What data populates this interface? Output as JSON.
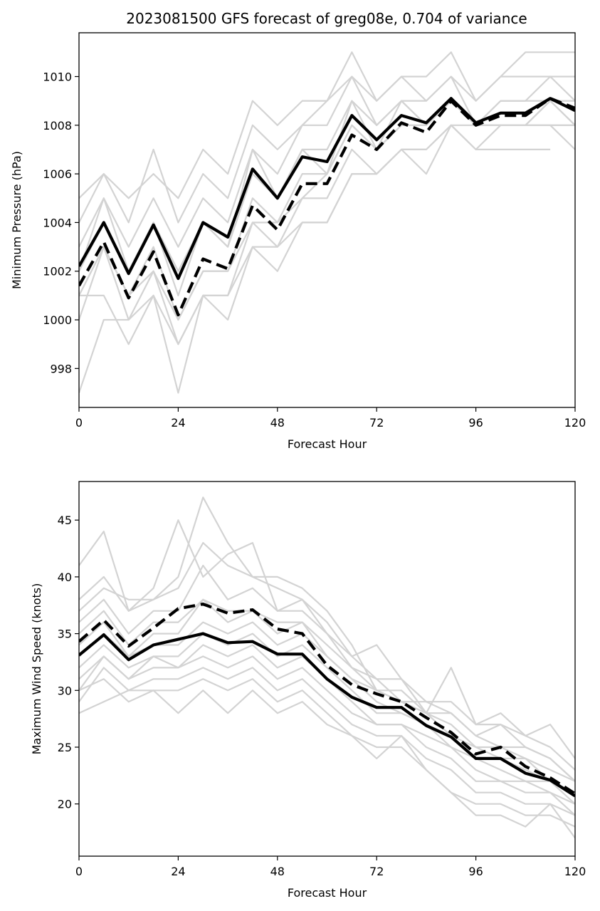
{
  "figure_title": "2023081500 GFS forecast of greg08e, 0.704 of variance",
  "colors": {
    "members": "#d3d3d3",
    "mean": "#000000",
    "background": "#ffffff"
  },
  "chart_data": [
    {
      "type": "line",
      "title": "2023081500 GFS forecast of greg08e, 0.704 of variance",
      "xlabel": "Forecast Hour",
      "ylabel": "Minimum Pressure (hPa)",
      "xlim": [
        0,
        120
      ],
      "ylim": [
        996.4,
        1011.8
      ],
      "xticks": [
        0,
        24,
        48,
        72,
        96,
        120
      ],
      "yticks": [
        998,
        1000,
        1002,
        1004,
        1006,
        1008,
        1010
      ],
      "x": [
        0,
        6,
        12,
        18,
        24,
        30,
        36,
        42,
        48,
        54,
        60,
        66,
        72,
        78,
        84,
        90,
        96,
        102,
        108,
        114,
        120
      ],
      "grid": false,
      "members": [
        [
          1005,
          1006,
          1005,
          1006,
          1005,
          1007,
          1006,
          1009,
          1008,
          1009,
          1009,
          1011,
          1009,
          1010,
          1010,
          1011,
          1009,
          1010,
          1011,
          1011,
          1011
        ],
        [
          1004,
          1006,
          1004,
          1007,
          1004,
          1006,
          1005,
          1008,
          1007,
          1008,
          1009,
          1010,
          1009,
          1010,
          1009,
          1010,
          1009,
          1010,
          1010,
          1010,
          1010
        ],
        [
          1003,
          1005,
          1003,
          1005,
          1003,
          1005,
          1004,
          1007,
          1006,
          1008,
          1008,
          1010,
          1008,
          1009,
          1009,
          1010,
          1008,
          1009,
          1009,
          1010,
          1009
        ],
        [
          1002,
          1005,
          1002,
          1004,
          1002,
          1004,
          1003,
          1007,
          1005,
          1007,
          1007,
          1009,
          1008,
          1009,
          1008,
          1009,
          1008,
          1009,
          1009,
          1009,
          1009
        ],
        [
          1002,
          1004,
          1002,
          1004,
          1001,
          1004,
          1003,
          1006,
          1005,
          1007,
          1006,
          1009,
          1007,
          1009,
          1008,
          1009,
          1008,
          1008,
          1008,
          1009,
          1008
        ],
        [
          1001,
          1003,
          1001,
          1003,
          1000,
          1002,
          1002,
          1005,
          1004,
          1006,
          1006,
          1008,
          1007,
          1008,
          1008,
          1009,
          1008,
          1008,
          1008,
          1009,
          1008
        ],
        [
          1001,
          1003,
          1000,
          1002,
          1000,
          1002,
          1002,
          1004,
          1004,
          1005,
          1006,
          1008,
          1007,
          1008,
          1008,
          1009,
          1008,
          1008,
          1008,
          1008,
          1008
        ],
        [
          1000,
          1003,
          1001,
          1002,
          999,
          1001,
          1001,
          1004,
          1003,
          1005,
          1005,
          1007,
          1006,
          1007,
          1007,
          1008,
          1007,
          1008,
          1008,
          1008,
          1008
        ],
        [
          1001,
          1001,
          999,
          1001,
          999,
          1001,
          1000,
          1003,
          1002,
          1004,
          1004,
          1006,
          1006,
          1007,
          1006,
          1008,
          1007,
          1007,
          1007,
          1007,
          null
        ],
        [
          997,
          1000,
          1000,
          1001,
          997,
          1001,
          1001,
          1003,
          1003,
          1004,
          1004,
          1006,
          1006,
          1007,
          1007,
          1008,
          1008,
          1008,
          1008,
          1008,
          1007
        ]
      ],
      "mean_solid": [
        1002.2,
        1004.0,
        1001.9,
        1003.9,
        1001.7,
        1004.0,
        1003.4,
        1006.2,
        1005.0,
        1006.7,
        1006.5,
        1008.4,
        1007.4,
        1008.4,
        1008.1,
        1009.1,
        1008.1,
        1008.5,
        1008.5,
        1009.1,
        1008.6
      ],
      "mean_dashed": [
        1001.4,
        1003.2,
        1000.9,
        1002.8,
        1000.2,
        1002.5,
        1002.1,
        1004.7,
        1003.7,
        1005.6,
        1005.6,
        1007.6,
        1007.0,
        1008.1,
        1007.7,
        1009.0,
        1008.0,
        1008.4,
        1008.4,
        1009.1,
        1008.7
      ]
    },
    {
      "type": "line",
      "title": "",
      "xlabel": "Forecast Hour",
      "ylabel": "Maximum Wind Speed (knots)",
      "xlim": [
        0,
        120
      ],
      "ylim": [
        15.4,
        48.4
      ],
      "xticks": [
        0,
        24,
        48,
        72,
        96,
        120
      ],
      "yticks": [
        20,
        25,
        30,
        35,
        40,
        45
      ],
      "x": [
        0,
        6,
        12,
        18,
        24,
        30,
        36,
        42,
        48,
        54,
        60,
        66,
        72,
        78,
        84,
        90,
        96,
        102,
        108,
        114,
        120
      ],
      "grid": false,
      "members": [
        [
          41,
          44,
          37,
          39,
          45,
          40,
          42,
          43,
          37,
          38,
          35,
          33,
          34,
          31,
          28,
          32,
          27,
          28,
          26,
          27,
          24
        ],
        [
          38,
          40,
          37,
          38,
          40,
          47,
          43,
          40,
          40,
          39,
          37,
          34,
          30,
          29,
          29,
          29,
          27,
          27,
          26,
          25,
          23
        ],
        [
          37,
          39,
          38,
          38,
          39,
          43,
          41,
          40,
          39,
          38,
          36,
          33,
          31,
          31,
          29,
          28,
          26,
          27,
          25,
          24,
          22
        ],
        [
          36,
          38,
          35,
          37,
          37,
          41,
          38,
          39,
          37,
          37,
          35,
          32,
          31,
          29,
          28,
          28,
          26,
          25,
          25,
          24,
          22
        ],
        [
          35,
          37,
          34,
          36,
          36,
          38,
          37,
          37,
          36,
          36,
          34,
          32,
          30,
          30,
          28,
          27,
          25,
          25,
          24,
          23,
          22
        ],
        [
          34,
          36,
          33,
          35,
          35,
          38,
          36,
          37,
          35,
          36,
          33,
          31,
          30,
          29,
          28,
          26,
          25,
          24,
          24,
          22,
          21
        ],
        [
          33,
          35,
          33,
          34,
          34,
          36,
          35,
          36,
          34,
          35,
          33,
          31,
          29,
          28,
          27,
          26,
          24,
          24,
          23,
          22,
          21
        ],
        [
          32,
          34,
          32,
          33,
          33,
          35,
          34,
          35,
          33,
          34,
          32,
          30,
          28,
          28,
          27,
          25,
          24,
          23,
          22,
          22,
          20
        ],
        [
          31,
          33,
          31,
          33,
          32,
          34,
          33,
          34,
          32,
          33,
          31,
          29,
          27,
          27,
          26,
          25,
          23,
          22,
          22,
          21,
          20
        ],
        [
          30,
          33,
          31,
          32,
          32,
          33,
          32,
          33,
          31,
          32,
          30,
          28,
          27,
          27,
          25,
          24,
          22,
          22,
          21,
          21,
          19
        ],
        [
          29,
          32,
          30,
          31,
          31,
          32,
          31,
          32,
          30,
          31,
          29,
          27,
          26,
          26,
          24,
          23,
          21,
          21,
          20,
          20,
          19
        ],
        [
          30,
          31,
          29,
          30,
          30,
          31,
          30,
          31,
          29,
          30,
          28,
          26,
          25,
          25,
          23,
          21,
          20,
          20,
          19,
          19,
          18
        ],
        [
          28,
          29,
          30,
          30,
          28,
          30,
          28,
          30,
          28,
          29,
          27,
          26,
          24,
          26,
          23,
          21,
          19,
          19,
          18,
          20,
          17
        ]
      ],
      "mean_solid": [
        33.1,
        34.9,
        32.7,
        34.0,
        34.5,
        35.0,
        34.2,
        34.3,
        33.2,
        33.2,
        31.0,
        29.4,
        28.5,
        28.5,
        26.9,
        25.9,
        24.0,
        24.0,
        22.7,
        22.1,
        20.7
      ],
      "mean_dashed": [
        34.3,
        36.2,
        33.9,
        35.5,
        37.2,
        37.6,
        36.8,
        37.1,
        35.4,
        35.0,
        32.2,
        30.5,
        29.7,
        29.0,
        27.6,
        26.3,
        24.4,
        25.0,
        23.3,
        22.3,
        20.9
      ]
    }
  ]
}
